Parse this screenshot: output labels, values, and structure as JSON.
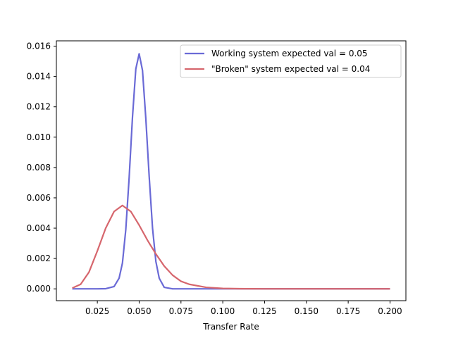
{
  "chart_data": {
    "type": "line",
    "title": "",
    "xlabel": "Transfer Rate",
    "ylabel": "",
    "xlim": [
      0.0005,
      0.2095
    ],
    "ylim": [
      -0.00078,
      0.01635
    ],
    "grid": false,
    "legend_position": "top-right",
    "x_ticks": [
      0.025,
      0.05,
      0.075,
      0.1,
      0.125,
      0.15,
      0.175,
      0.2
    ],
    "x_tick_labels": [
      "0.025",
      "0.050",
      "0.075",
      "0.100",
      "0.125",
      "0.150",
      "0.175",
      "0.200"
    ],
    "y_ticks": [
      0.0,
      0.002,
      0.004,
      0.006,
      0.008,
      0.01,
      0.012,
      0.014,
      0.016
    ],
    "y_tick_labels": [
      "0.000",
      "0.002",
      "0.004",
      "0.006",
      "0.008",
      "0.010",
      "0.012",
      "0.014",
      "0.016"
    ],
    "series": [
      {
        "name": "Working system expected val = 0.05",
        "color": "#6a6ad6",
        "x": [
          0.01,
          0.025,
          0.03,
          0.035,
          0.038,
          0.04,
          0.042,
          0.044,
          0.046,
          0.048,
          0.05,
          0.052,
          0.054,
          0.056,
          0.058,
          0.06,
          0.062,
          0.065,
          0.07,
          0.08,
          0.2
        ],
        "y": [
          0.0,
          0.0,
          1e-05,
          0.00015,
          0.0007,
          0.0017,
          0.0039,
          0.0073,
          0.0113,
          0.0145,
          0.0155,
          0.0144,
          0.0112,
          0.0074,
          0.004,
          0.0018,
          0.0007,
          0.0001,
          0.0,
          0.0,
          0.0
        ]
      },
      {
        "name": "\"Broken\" system expected val = 0.04",
        "color": "#d6666d",
        "x": [
          0.01,
          0.015,
          0.02,
          0.025,
          0.03,
          0.035,
          0.04,
          0.045,
          0.05,
          0.055,
          0.06,
          0.065,
          0.07,
          0.075,
          0.08,
          0.09,
          0.1,
          0.11,
          0.125,
          0.15,
          0.2
        ],
        "y": [
          5e-05,
          0.0003,
          0.0011,
          0.0025,
          0.004,
          0.0051,
          0.0055,
          0.0051,
          0.0042,
          0.0032,
          0.0023,
          0.0015,
          0.0009,
          0.0005,
          0.0003,
          0.0001,
          3e-05,
          1e-05,
          0.0,
          0.0,
          0.0
        ]
      }
    ]
  }
}
